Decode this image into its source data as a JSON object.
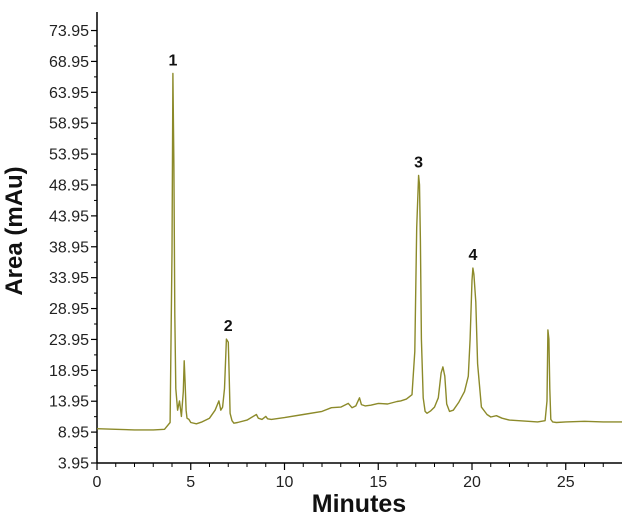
{
  "chart_data": {
    "type": "line",
    "title": "",
    "xlabel": "Minutes",
    "ylabel": "Area (mAu)",
    "xlim": [
      0,
      28
    ],
    "ylim": [
      3.95,
      76.95
    ],
    "grid": false,
    "x_ticks": [
      0,
      5,
      10,
      15,
      20,
      25
    ],
    "x_tick_labels": [
      "0",
      "5",
      "10",
      "15",
      "20",
      "25"
    ],
    "y_ticks": [
      3.95,
      8.95,
      13.95,
      18.95,
      23.95,
      28.95,
      33.95,
      38.95,
      43.95,
      48.95,
      53.95,
      58.95,
      63.95,
      68.95,
      73.95
    ],
    "y_tick_labels": [
      "3.95",
      "8.95",
      "13.95",
      "18.95",
      "23.95",
      "28.95",
      "33.95",
      "38.95",
      "43.95",
      "48.95",
      "53.95",
      "58.95",
      "63.95",
      "68.95",
      "73.95"
    ],
    "series": [
      {
        "color": "#8c8a2a",
        "x": [
          0,
          1,
          2,
          3,
          3.6,
          3.9,
          4.0,
          4.05,
          4.1,
          4.15,
          4.2,
          4.3,
          4.4,
          4.5,
          4.6,
          4.65,
          4.7,
          4.75,
          4.8,
          4.9,
          5.0,
          5.3,
          5.6,
          6.0,
          6.3,
          6.5,
          6.6,
          6.7,
          6.8,
          6.9,
          7.0,
          7.05,
          7.1,
          7.2,
          7.3,
          7.5,
          8.0,
          8.5,
          8.6,
          8.8,
          9.0,
          9.1,
          9.3,
          10,
          11,
          12,
          12.5,
          13,
          13.4,
          13.6,
          13.8,
          14.0,
          14.1,
          14.3,
          14.6,
          15,
          15.5,
          16,
          16.2,
          16.5,
          16.8,
          16.95,
          17.05,
          17.15,
          17.2,
          17.25,
          17.3,
          17.4,
          17.5,
          17.6,
          17.8,
          18.0,
          18.2,
          18.35,
          18.45,
          18.55,
          18.65,
          18.8,
          19.0,
          19.3,
          19.6,
          19.8,
          19.9,
          20.0,
          20.05,
          20.1,
          20.2,
          20.3,
          20.5,
          20.8,
          21.0,
          21.3,
          21.6,
          22.0,
          22.5,
          23.0,
          23.5,
          23.9,
          24.0,
          24.05,
          24.1,
          24.15,
          24.2,
          24.3,
          24.5,
          25.0,
          26.0,
          27.0,
          28.0
        ],
        "y": [
          9.5,
          9.4,
          9.3,
          9.3,
          9.4,
          10.5,
          38.0,
          67.0,
          52.0,
          28.0,
          16.0,
          12.5,
          14.0,
          11.5,
          15.5,
          20.5,
          17.0,
          12.5,
          11.2,
          11.0,
          10.5,
          10.3,
          10.6,
          11.2,
          12.5,
          14.0,
          12.5,
          13.0,
          16.0,
          24.0,
          23.5,
          18.0,
          12.0,
          10.8,
          10.4,
          10.5,
          10.9,
          11.8,
          11.2,
          11.0,
          11.5,
          11.1,
          11.0,
          11.3,
          11.8,
          12.3,
          12.9,
          13.0,
          13.6,
          12.9,
          13.2,
          14.5,
          13.4,
          13.2,
          13.3,
          13.6,
          13.5,
          13.9,
          14.0,
          14.3,
          15.0,
          22.0,
          42.0,
          50.5,
          49.0,
          40.0,
          24.0,
          14.5,
          12.3,
          12.0,
          12.4,
          13.0,
          14.5,
          18.5,
          19.5,
          18.0,
          13.5,
          12.3,
          12.5,
          13.8,
          15.5,
          18.0,
          24.0,
          33.5,
          35.5,
          34.5,
          30.0,
          20.0,
          13.0,
          11.8,
          11.4,
          11.6,
          11.2,
          10.9,
          10.8,
          10.7,
          10.6,
          10.8,
          14.0,
          25.5,
          24.0,
          16.0,
          11.0,
          10.6,
          10.5,
          10.6,
          10.7,
          10.6,
          10.6
        ]
      }
    ],
    "annotations": [
      {
        "text": "1",
        "x": 4.05,
        "y": 67.0
      },
      {
        "text": "2",
        "x": 7.0,
        "y": 24.0
      },
      {
        "text": "3",
        "x": 17.15,
        "y": 50.5
      },
      {
        "text": "4",
        "x": 20.05,
        "y": 35.5
      }
    ]
  }
}
